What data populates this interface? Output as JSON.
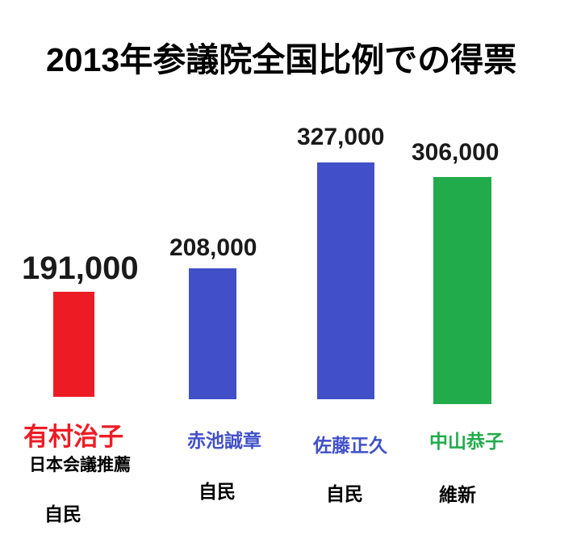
{
  "title": "2013年参議院全国比例での得票",
  "colors": {
    "red": "#ed1c24",
    "blue": "#4150c8",
    "green": "#22ab4b",
    "text": "#000000",
    "background": "#ffffff"
  },
  "columns": [
    {
      "value": "191,000",
      "name": "有村治子",
      "name_color": "#ed1c24",
      "color": "#ed1c24",
      "note": "日本会議推薦",
      "party": "自民"
    },
    {
      "value": "208,000",
      "name": "赤池誠章",
      "name_color": "#4150c8",
      "color": "#4150c8",
      "party": "自民"
    },
    {
      "value": "327,000",
      "name": "佐藤正久",
      "name_color": "#4150c8",
      "color": "#4150c8",
      "party": "自民"
    },
    {
      "value": "306,000",
      "name": "中山恭子",
      "name_color": "#22ab4b",
      "color": "#22ab4b",
      "party": "維新"
    }
  ],
  "chart_data": {
    "type": "bar",
    "title": "2013年参議院全国比例での得票",
    "categories": [
      "有村治子",
      "赤池誠章",
      "佐藤正久",
      "中山恭子"
    ],
    "values": [
      191000,
      208000,
      327000,
      306000
    ],
    "value_labels": [
      "191,000",
      "208,000",
      "327,000",
      "306,000"
    ],
    "bar_colors": [
      "#ed1c24",
      "#4150c8",
      "#4150c8",
      "#22ab4b"
    ],
    "category_notes": [
      "日本会議推薦",
      "",
      "",
      ""
    ],
    "parties": [
      "自民",
      "自民",
      "自民",
      "維新"
    ],
    "xlabel": "",
    "ylabel": "",
    "grid": false,
    "legend": false,
    "axes_shown": false
  }
}
